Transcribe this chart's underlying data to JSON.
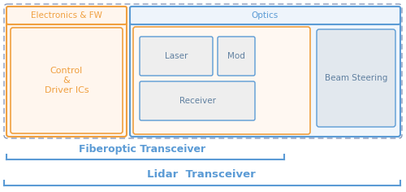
{
  "bg_color": "#ffffff",
  "orange_color": "#f0a040",
  "orange_fill": "#fff6ee",
  "blue_color": "#5b9bd5",
  "blue_fill": "#eef4fb",
  "blue_fill_light": "#f0f6fc",
  "gray_fill": "#eeeeee",
  "gray_fill2": "#e2e8ee",
  "dashed_color": "#8899bb",
  "text_orange": "#f0a040",
  "text_blue": "#5b9bd5",
  "text_dark": "#6080a0",
  "elec_fw_label": "Electronics & FW",
  "optics_label": "Optics",
  "control_label": "Control\n&\nDriver ICs",
  "laser_label": "Laser",
  "mod_label": "Mod",
  "receiver_label": "Receiver",
  "beam_steering_label": "Beam Steering",
  "fiberoptic_label": "Fiberoptic Transceiver",
  "lidar_label": "Lidar  Transceiver",
  "figw": 5.0,
  "figh": 2.36,
  "dpi": 100
}
